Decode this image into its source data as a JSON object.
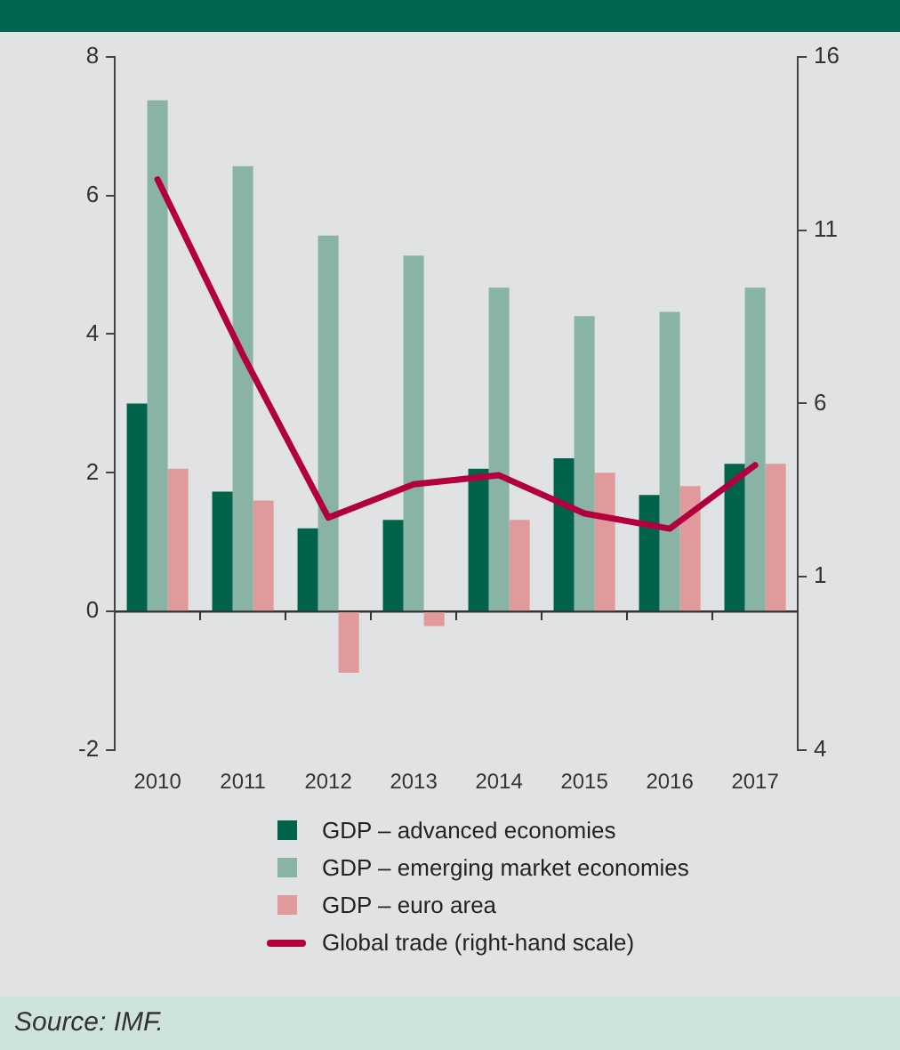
{
  "chart_data": {
    "type": "bar",
    "categories": [
      "2010",
      "2011",
      "2012",
      "2013",
      "2014",
      "2015",
      "2016",
      "2017"
    ],
    "series": [
      {
        "name": "GDP – advanced economies",
        "color": "#00634a",
        "values": [
          3.0,
          1.73,
          1.2,
          1.32,
          2.06,
          2.21,
          1.68,
          2.13
        ]
      },
      {
        "name": "GDP – emerging market economies",
        "color": "#88b3a5",
        "values": [
          7.37,
          6.42,
          5.42,
          5.13,
          4.67,
          4.26,
          4.32,
          4.67
        ]
      },
      {
        "name": "GDP – euro area",
        "color": "#e09a9c",
        "values": [
          2.06,
          1.6,
          -0.88,
          -0.21,
          1.32,
          2.0,
          1.81,
          2.13
        ]
      },
      {
        "name": "Global trade (right-hand scale)",
        "type": "line",
        "axis": "y2",
        "color": "#b2003f",
        "values": [
          12.46,
          7.4,
          2.71,
          3.67,
          3.93,
          2.83,
          2.39,
          4.22
        ]
      }
    ],
    "ylim": [
      -2,
      8
    ],
    "yticks": [
      -2,
      0,
      2,
      4,
      6,
      8
    ],
    "y2lim": [
      -4,
      16
    ],
    "y2ticks": [
      {
        "value": -4,
        "label": "4"
      },
      1,
      6,
      11,
      16
    ],
    "ref_lines": [
      {
        "axis": "y",
        "value": 0,
        "color": "#333333"
      }
    ],
    "grid": false,
    "legend": "bottom",
    "marker": "none",
    "line_style": "solid",
    "annotations": [
      "Source: IMF."
    ]
  }
}
